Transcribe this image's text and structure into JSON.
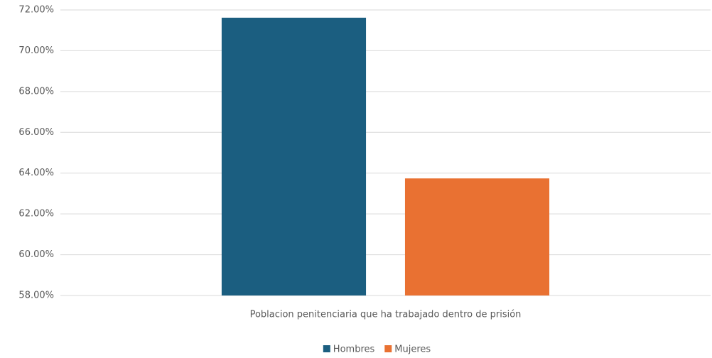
{
  "chart_data": {
    "type": "bar",
    "categories": [
      "Poblacion penitenciaria que ha trabajado dentro de prisión"
    ],
    "series": [
      {
        "name": "Hombres",
        "color": "#1b5e80",
        "values": [
          71.62
        ]
      },
      {
        "name": "Mujeres",
        "color": "#e97132",
        "values": [
          63.74
        ]
      }
    ],
    "ylim": [
      58,
      72
    ],
    "yticks": [
      {
        "value": 58,
        "label": "58.00%"
      },
      {
        "value": 60,
        "label": "60.00%"
      },
      {
        "value": 62,
        "label": "62.00%"
      },
      {
        "value": 64,
        "label": "64.00%"
      },
      {
        "value": 66,
        "label": "66.00%"
      },
      {
        "value": 68,
        "label": "68.00%"
      },
      {
        "value": 70,
        "label": "70.00%"
      },
      {
        "value": 72,
        "label": "72.00%"
      }
    ],
    "grid": true,
    "legend": "bottom"
  }
}
